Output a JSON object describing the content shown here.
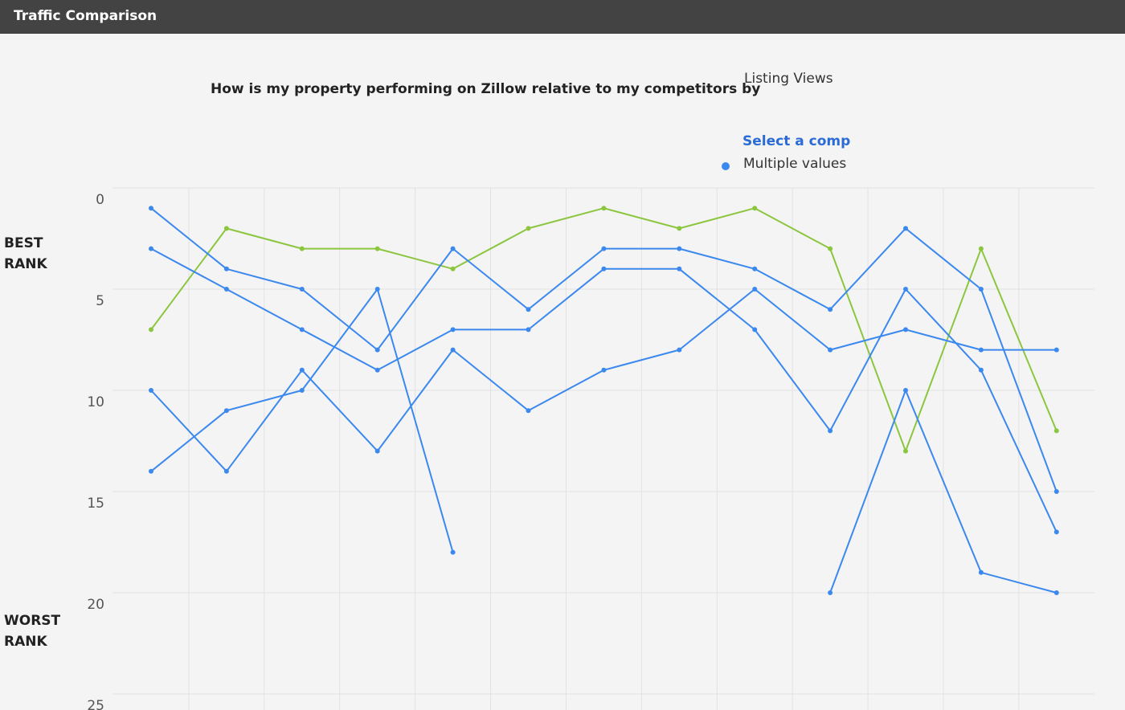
{
  "header": {
    "title": "Traffic Comparison"
  },
  "question": {
    "text": "How is my property performing on Zillow relative to my competitors by"
  },
  "metric_select": {
    "value": "Listing Views"
  },
  "comp_filter": {
    "title": "Select a comp",
    "option": "Multiple values",
    "dot_color": "#3b88ee"
  },
  "rank_labels": {
    "best": [
      "BEST",
      "RANK"
    ],
    "worst": [
      "WORST",
      "RANK"
    ]
  },
  "chart_data": {
    "type": "line",
    "title": "",
    "xlabel": "",
    "ylabel": "",
    "y_axis_reversed": true,
    "ylim": [
      0,
      25
    ],
    "yticks": [
      "0",
      "5",
      "10",
      "15",
      "20",
      "25"
    ],
    "x": [
      1,
      2,
      3,
      4,
      5,
      6,
      7,
      8,
      9,
      10,
      11,
      12,
      13
    ],
    "grid": true,
    "legend": "none",
    "series": [
      {
        "color": "#8cc63f",
        "values": [
          7,
          2,
          3,
          3,
          4,
          2,
          1,
          2,
          1,
          3,
          13,
          3,
          12
        ]
      },
      {
        "color": "#3b88ee",
        "values": [
          1,
          4,
          5,
          8,
          3,
          6,
          3,
          3,
          4,
          6,
          2,
          5,
          15
        ]
      },
      {
        "color": "#3b88ee",
        "values": [
          3,
          5,
          7,
          9,
          7,
          7,
          4,
          4,
          7,
          12,
          5,
          9,
          17
        ]
      },
      {
        "color": "#3b88ee",
        "values": [
          10,
          14,
          9,
          13,
          8,
          11,
          9,
          8,
          5,
          8,
          7,
          8,
          8
        ]
      },
      {
        "color": "#3b88ee",
        "values": [
          14,
          11,
          10,
          5,
          18,
          null,
          null,
          null,
          null,
          null,
          null,
          null,
          null
        ]
      },
      {
        "color": "#3b88ee",
        "values": [
          null,
          null,
          null,
          null,
          null,
          null,
          null,
          null,
          null,
          20,
          10,
          19,
          20
        ]
      }
    ]
  }
}
